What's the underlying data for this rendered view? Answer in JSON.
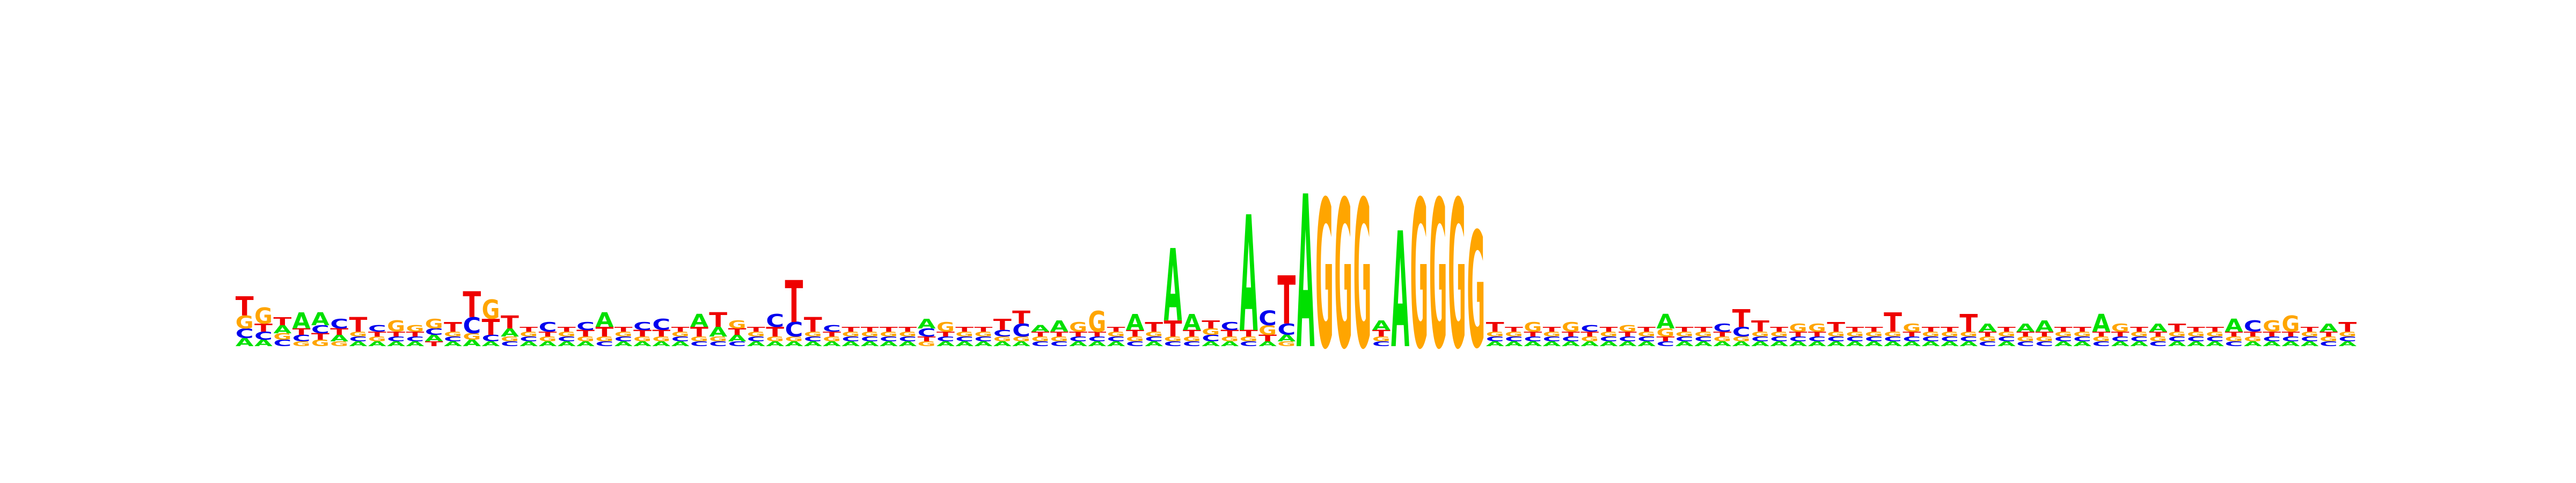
{
  "colors": {
    "A": "#00e000",
    "C": "#0000ee",
    "G": "#ffa500",
    "T": "#ee0000",
    "background": "#ffffff"
  },
  "chart_data": {
    "type": "sequence-logo",
    "xlabel": "",
    "ylabel": "",
    "ylim": [
      0,
      2
    ],
    "grid": false,
    "legend": "none",
    "positions": [
      {
        "A": 0.05,
        "C": 0.06,
        "G": 0.08,
        "T": 0.12
      },
      {
        "A": 0.04,
        "C": 0.05,
        "G": 0.1,
        "T": 0.05
      },
      {
        "A": 0.05,
        "C": 0.04,
        "G": 0.04,
        "T": 0.05
      },
      {
        "A": 0.1,
        "C": 0.04,
        "G": 0.03,
        "T": 0.04
      },
      {
        "A": 0.08,
        "C": 0.05,
        "G": 0.04,
        "T": 0.04
      },
      {
        "A": 0.04,
        "C": 0.06,
        "G": 0.03,
        "T": 0.04
      },
      {
        "A": 0.03,
        "C": 0.03,
        "G": 0.03,
        "T": 0.09
      },
      {
        "A": 0.03,
        "C": 0.04,
        "G": 0.03,
        "T": 0.03
      },
      {
        "A": 0.03,
        "C": 0.03,
        "G": 0.07,
        "T": 0.03
      },
      {
        "A": 0.03,
        "C": 0.03,
        "G": 0.04,
        "T": 0.03
      },
      {
        "A": 0.04,
        "C": 0.04,
        "G": 0.06,
        "T": 0.03
      },
      {
        "A": 0.03,
        "C": 0.03,
        "G": 0.03,
        "T": 0.06
      },
      {
        "A": 0.04,
        "C": 0.1,
        "G": 0.04,
        "T": 0.16
      },
      {
        "A": 0.03,
        "C": 0.04,
        "G": 0.12,
        "T": 0.1
      },
      {
        "A": 0.05,
        "C": 0.03,
        "G": 0.03,
        "T": 0.08
      },
      {
        "A": 0.03,
        "C": 0.03,
        "G": 0.03,
        "T": 0.03
      },
      {
        "A": 0.03,
        "C": 0.06,
        "G": 0.03,
        "T": 0.03
      },
      {
        "A": 0.03,
        "C": 0.03,
        "G": 0.03,
        "T": 0.03
      },
      {
        "A": 0.03,
        "C": 0.05,
        "G": 0.03,
        "T": 0.04
      },
      {
        "A": 0.09,
        "C": 0.03,
        "G": 0.03,
        "T": 0.06
      },
      {
        "A": 0.03,
        "C": 0.03,
        "G": 0.03,
        "T": 0.03
      },
      {
        "A": 0.03,
        "C": 0.05,
        "G": 0.03,
        "T": 0.04
      },
      {
        "A": 0.03,
        "C": 0.07,
        "G": 0.03,
        "T": 0.04
      },
      {
        "A": 0.03,
        "C": 0.03,
        "G": 0.03,
        "T": 0.03
      },
      {
        "A": 0.08,
        "C": 0.03,
        "G": 0.03,
        "T": 0.06
      },
      {
        "A": 0.06,
        "C": 0.03,
        "G": 0.03,
        "T": 0.09
      },
      {
        "A": 0.04,
        "C": 0.03,
        "G": 0.05,
        "T": 0.04
      },
      {
        "A": 0.03,
        "C": 0.03,
        "G": 0.03,
        "T": 0.03
      },
      {
        "A": 0.03,
        "C": 0.08,
        "G": 0.03,
        "T": 0.06
      },
      {
        "A": 0.03,
        "C": 0.09,
        "G": 0.03,
        "T": 0.26
      },
      {
        "A": 0.03,
        "C": 0.03,
        "G": 0.03,
        "T": 0.09
      },
      {
        "A": 0.03,
        "C": 0.04,
        "G": 0.03,
        "T": 0.03
      },
      {
        "A": 0.03,
        "C": 0.03,
        "G": 0.03,
        "T": 0.03
      },
      {
        "A": 0.03,
        "C": 0.03,
        "G": 0.03,
        "T": 0.03
      },
      {
        "A": 0.03,
        "C": 0.03,
        "G": 0.03,
        "T": 0.03
      },
      {
        "A": 0.03,
        "C": 0.03,
        "G": 0.03,
        "T": 0.03
      },
      {
        "A": 0.06,
        "C": 0.05,
        "G": 0.03,
        "T": 0.03
      },
      {
        "A": 0.03,
        "C": 0.03,
        "G": 0.06,
        "T": 0.03
      },
      {
        "A": 0.03,
        "C": 0.03,
        "G": 0.03,
        "T": 0.03
      },
      {
        "A": 0.03,
        "C": 0.03,
        "G": 0.03,
        "T": 0.03
      },
      {
        "A": 0.03,
        "C": 0.04,
        "G": 0.03,
        "T": 0.07
      },
      {
        "A": 0.03,
        "C": 0.08,
        "G": 0.03,
        "T": 0.08
      },
      {
        "A": 0.04,
        "C": 0.03,
        "G": 0.03,
        "T": 0.03
      },
      {
        "A": 0.07,
        "C": 0.03,
        "G": 0.03,
        "T": 0.03
      },
      {
        "A": 0.03,
        "C": 0.03,
        "G": 0.06,
        "T": 0.03
      },
      {
        "A": 0.03,
        "C": 0.03,
        "G": 0.13,
        "T": 0.03
      },
      {
        "A": 0.03,
        "C": 0.03,
        "G": 0.03,
        "T": 0.03
      },
      {
        "A": 0.1,
        "C": 0.03,
        "G": 0.03,
        "T": 0.04
      },
      {
        "A": 0.03,
        "C": 0.03,
        "G": 0.03,
        "T": 0.06
      },
      {
        "A": 0.45,
        "C": 0.03,
        "G": 0.03,
        "T": 0.1
      },
      {
        "A": 0.1,
        "C": 0.03,
        "G": 0.03,
        "T": 0.04
      },
      {
        "A": 0.03,
        "C": 0.04,
        "G": 0.04,
        "T": 0.05
      },
      {
        "A": 0.03,
        "C": 0.05,
        "G": 0.03,
        "T": 0.04
      },
      {
        "A": 0.72,
        "C": 0.03,
        "G": 0.03,
        "T": 0.04
      },
      {
        "A": 0.03,
        "C": 0.09,
        "G": 0.06,
        "T": 0.04
      },
      {
        "A": 0.04,
        "C": 0.07,
        "G": 0.03,
        "T": 0.3
      },
      {
        "A": 0.95,
        "C": 0.0,
        "G": 0.0,
        "T": 0.0
      },
      {
        "A": 0.0,
        "C": 0.0,
        "G": 0.92,
        "T": 0.0
      },
      {
        "A": 0.0,
        "C": 0.0,
        "G": 0.92,
        "T": 0.0
      },
      {
        "A": 0.0,
        "C": 0.0,
        "G": 0.92,
        "T": 0.0
      },
      {
        "A": 0.06,
        "C": 0.03,
        "G": 0.03,
        "T": 0.04
      },
      {
        "A": 0.72,
        "C": 0.0,
        "G": 0.0,
        "T": 0.0
      },
      {
        "A": 0.0,
        "C": 0.0,
        "G": 0.92,
        "T": 0.0
      },
      {
        "A": 0.0,
        "C": 0.0,
        "G": 0.92,
        "T": 0.0
      },
      {
        "A": 0.0,
        "C": 0.0,
        "G": 0.92,
        "T": 0.0
      },
      {
        "A": 0.0,
        "C": 0.0,
        "G": 0.72,
        "T": 0.0
      },
      {
        "A": 0.03,
        "C": 0.03,
        "G": 0.03,
        "T": 0.06
      },
      {
        "A": 0.03,
        "C": 0.03,
        "G": 0.03,
        "T": 0.03
      },
      {
        "A": 0.03,
        "C": 0.03,
        "G": 0.06,
        "T": 0.03
      },
      {
        "A": 0.03,
        "C": 0.03,
        "G": 0.03,
        "T": 0.03
      },
      {
        "A": 0.03,
        "C": 0.03,
        "G": 0.06,
        "T": 0.03
      },
      {
        "A": 0.03,
        "C": 0.04,
        "G": 0.03,
        "T": 0.03
      },
      {
        "A": 0.03,
        "C": 0.03,
        "G": 0.03,
        "T": 0.03
      },
      {
        "A": 0.03,
        "C": 0.03,
        "G": 0.04,
        "T": 0.03
      },
      {
        "A": 0.03,
        "C": 0.03,
        "G": 0.03,
        "T": 0.03
      },
      {
        "A": 0.09,
        "C": 0.03,
        "G": 0.05,
        "T": 0.03
      },
      {
        "A": 0.03,
        "C": 0.03,
        "G": 0.03,
        "T": 0.03
      },
      {
        "A": 0.03,
        "C": 0.03,
        "G": 0.03,
        "T": 0.03
      },
      {
        "A": 0.03,
        "C": 0.05,
        "G": 0.03,
        "T": 0.03
      },
      {
        "A": 0.03,
        "C": 0.06,
        "G": 0.03,
        "T": 0.11
      },
      {
        "A": 0.03,
        "C": 0.03,
        "G": 0.03,
        "T": 0.07
      },
      {
        "A": 0.03,
        "C": 0.03,
        "G": 0.03,
        "T": 0.03
      },
      {
        "A": 0.03,
        "C": 0.03,
        "G": 0.05,
        "T": 0.03
      },
      {
        "A": 0.03,
        "C": 0.03,
        "G": 0.05,
        "T": 0.03
      },
      {
        "A": 0.03,
        "C": 0.03,
        "G": 0.03,
        "T": 0.06
      },
      {
        "A": 0.03,
        "C": 0.03,
        "G": 0.03,
        "T": 0.03
      },
      {
        "A": 0.03,
        "C": 0.03,
        "G": 0.03,
        "T": 0.03
      },
      {
        "A": 0.03,
        "C": 0.03,
        "G": 0.03,
        "T": 0.12
      },
      {
        "A": 0.03,
        "C": 0.03,
        "G": 0.05,
        "T": 0.03
      },
      {
        "A": 0.03,
        "C": 0.03,
        "G": 0.03,
        "T": 0.03
      },
      {
        "A": 0.03,
        "C": 0.03,
        "G": 0.03,
        "T": 0.03
      },
      {
        "A": 0.03,
        "C": 0.03,
        "G": 0.03,
        "T": 0.11
      },
      {
        "A": 0.05,
        "C": 0.03,
        "G": 0.03,
        "T": 0.03
      },
      {
        "A": 0.03,
        "C": 0.03,
        "G": 0.03,
        "T": 0.03
      },
      {
        "A": 0.05,
        "C": 0.03,
        "G": 0.03,
        "T": 0.03
      },
      {
        "A": 0.07,
        "C": 0.03,
        "G": 0.03,
        "T": 0.03
      },
      {
        "A": 0.03,
        "C": 0.03,
        "G": 0.03,
        "T": 0.03
      },
      {
        "A": 0.03,
        "C": 0.03,
        "G": 0.03,
        "T": 0.03
      },
      {
        "A": 0.11,
        "C": 0.03,
        "G": 0.03,
        "T": 0.03
      },
      {
        "A": 0.03,
        "C": 0.03,
        "G": 0.05,
        "T": 0.03
      },
      {
        "A": 0.03,
        "C": 0.03,
        "G": 0.03,
        "T": 0.03
      },
      {
        "A": 0.05,
        "C": 0.03,
        "G": 0.03,
        "T": 0.03
      },
      {
        "A": 0.03,
        "C": 0.03,
        "G": 0.03,
        "T": 0.05
      },
      {
        "A": 0.03,
        "C": 0.03,
        "G": 0.03,
        "T": 0.03
      },
      {
        "A": 0.03,
        "C": 0.03,
        "G": 0.03,
        "T": 0.03
      },
      {
        "A": 0.08,
        "C": 0.03,
        "G": 0.03,
        "T": 0.03
      },
      {
        "A": 0.03,
        "C": 0.07,
        "G": 0.03,
        "T": 0.03
      },
      {
        "A": 0.03,
        "C": 0.03,
        "G": 0.07,
        "T": 0.03
      },
      {
        "A": 0.03,
        "C": 0.03,
        "G": 0.1,
        "T": 0.03
      },
      {
        "A": 0.03,
        "C": 0.03,
        "G": 0.03,
        "T": 0.03
      },
      {
        "A": 0.05,
        "C": 0.03,
        "G": 0.03,
        "T": 0.03
      },
      {
        "A": 0.03,
        "C": 0.03,
        "G": 0.03,
        "T": 0.06
      }
    ]
  }
}
